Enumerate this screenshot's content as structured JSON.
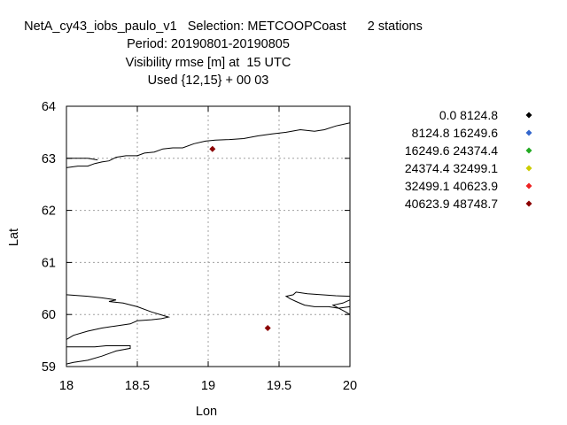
{
  "chart_data": {
    "type": "scatter",
    "title_lines": [
      "NetA_cy43_iobs_paulo_v1   Selection: METCOOPCoast      2 stations",
      "Period: 20190801-20190805",
      "Visibility rmse [m] at  15 UTC",
      "Used {12,15} + 00 03"
    ],
    "xlabel": "Lon",
    "ylabel": "Lat",
    "xlim": [
      18,
      20
    ],
    "ylim": [
      59,
      64
    ],
    "xticks": [
      18,
      18.5,
      19,
      19.5,
      20
    ],
    "xtick_labels": [
      "18",
      "18.5",
      "19",
      "19.5",
      "20"
    ],
    "yticks": [
      59,
      60,
      61,
      62,
      63,
      64
    ],
    "ytick_labels": [
      "59",
      "60",
      "61",
      "62",
      "63",
      "64"
    ],
    "grid": true,
    "legend_position": "right",
    "legend": [
      {
        "label": "0.0 8124.8",
        "color": "#000000"
      },
      {
        "label": "8124.8 16249.6",
        "color": "#3366cc"
      },
      {
        "label": "16249.6 24374.4",
        "color": "#22aa22"
      },
      {
        "label": "24374.4 32499.1",
        "color": "#cccc00"
      },
      {
        "label": "32499.1 40623.9",
        "color": "#ee2222"
      },
      {
        "label": "40623.9 48748.7",
        "color": "#8b0000"
      }
    ],
    "points": [
      {
        "lon": 19.03,
        "lat": 63.18,
        "color": "#8b0000"
      },
      {
        "lon": 19.42,
        "lat": 59.74,
        "color": "#8b0000"
      }
    ],
    "coastlines": [
      [
        [
          18.0,
          62.82
        ],
        [
          18.08,
          62.85
        ],
        [
          18.15,
          62.85
        ],
        [
          18.2,
          62.9
        ],
        [
          18.25,
          62.93
        ],
        [
          18.3,
          62.95
        ],
        [
          18.35,
          63.02
        ],
        [
          18.42,
          63.05
        ],
        [
          18.5,
          63.05
        ],
        [
          18.55,
          63.1
        ],
        [
          18.62,
          63.12
        ],
        [
          18.68,
          63.18
        ],
        [
          18.75,
          63.2
        ],
        [
          18.82,
          63.2
        ],
        [
          18.9,
          63.28
        ],
        [
          18.98,
          63.33
        ],
        [
          19.05,
          63.35
        ],
        [
          19.15,
          63.36
        ],
        [
          19.25,
          63.38
        ],
        [
          19.35,
          63.43
        ],
        [
          19.45,
          63.47
        ],
        [
          19.55,
          63.5
        ],
        [
          19.65,
          63.55
        ],
        [
          19.75,
          63.52
        ],
        [
          19.82,
          63.55
        ],
        [
          19.9,
          63.62
        ],
        [
          20.0,
          63.68
        ]
      ],
      [
        [
          18.0,
          63.0
        ],
        [
          18.15,
          63.0
        ],
        [
          18.22,
          62.97
        ]
      ],
      [
        [
          18.0,
          60.38
        ],
        [
          18.15,
          60.35
        ],
        [
          18.25,
          60.32
        ],
        [
          18.35,
          60.28
        ],
        [
          18.3,
          60.25
        ],
        [
          18.4,
          60.22
        ],
        [
          18.5,
          60.15
        ],
        [
          18.6,
          60.05
        ],
        [
          18.72,
          59.95
        ],
        [
          18.67,
          59.92
        ],
        [
          18.6,
          59.9
        ],
        [
          18.5,
          59.88
        ],
        [
          18.45,
          59.82
        ],
        [
          18.35,
          59.78
        ],
        [
          18.25,
          59.74
        ],
        [
          18.15,
          59.68
        ],
        [
          18.05,
          59.6
        ],
        [
          18.0,
          59.52
        ]
      ],
      [
        [
          18.0,
          59.38
        ],
        [
          18.1,
          59.38
        ],
        [
          18.2,
          59.38
        ],
        [
          18.28,
          59.4
        ],
        [
          18.45,
          59.4
        ],
        [
          18.45,
          59.35
        ],
        [
          18.35,
          59.3
        ],
        [
          18.3,
          59.25
        ],
        [
          18.25,
          59.2
        ],
        [
          18.15,
          59.12
        ],
        [
          18.05,
          59.08
        ],
        [
          18.0,
          59.05
        ]
      ],
      [
        [
          20.0,
          60.35
        ],
        [
          19.9,
          60.36
        ],
        [
          19.8,
          60.38
        ],
        [
          19.7,
          60.4
        ],
        [
          19.62,
          60.43
        ],
        [
          19.6,
          60.38
        ],
        [
          19.55,
          60.35
        ],
        [
          19.58,
          60.3
        ],
        [
          19.62,
          60.25
        ],
        [
          19.68,
          60.18
        ],
        [
          19.75,
          60.15
        ],
        [
          19.85,
          60.15
        ],
        [
          19.92,
          60.12
        ],
        [
          19.97,
          60.05
        ],
        [
          20.0,
          60.0
        ]
      ],
      [
        [
          20.0,
          60.28
        ],
        [
          19.95,
          60.22
        ],
        [
          19.88,
          60.18
        ],
        [
          19.92,
          60.12
        ],
        [
          20.0,
          60.15
        ]
      ]
    ]
  }
}
